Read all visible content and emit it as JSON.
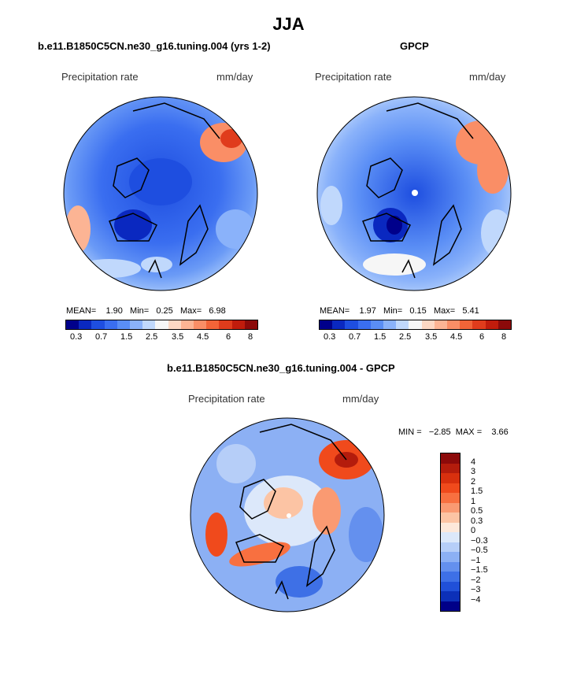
{
  "title": "JJA",
  "panels": [
    {
      "title": "b.e11.B1850C5CN.ne30_g16.tuning.004 (yrs 1-2)",
      "variable": "Precipitation rate",
      "units": "mm/day",
      "stats": {
        "mean_label": "MEAN=",
        "mean": "1.90",
        "min_label": "Min=",
        "min": "0.25",
        "max_label": "Max=",
        "max": "6.98"
      }
    },
    {
      "title": "GPCP",
      "variable": "Precipitation rate",
      "units": "mm/day",
      "stats": {
        "mean_label": "MEAN=",
        "mean": "1.97",
        "min_label": "Min=",
        "min": "0.15",
        "max_label": "Max=",
        "max": "5.41"
      }
    },
    {
      "title": "b.e11.B1850C5CN.ne30_g16.tuning.004 - GPCP",
      "variable": "Precipitation rate",
      "units": "mm/day",
      "stats": {
        "min_label": "MIN =",
        "min": "−2.85",
        "max_label": "MAX =",
        "max": "3.66"
      }
    }
  ],
  "colorbar_abs": {
    "colors": [
      "#00008b",
      "#0a28c0",
      "#1e4ee0",
      "#3a6ef0",
      "#5a8ef5",
      "#8ab2fa",
      "#c0d8fc",
      "#f6f6f6",
      "#fcd8c4",
      "#fcb494",
      "#fa8e66",
      "#f26438",
      "#e03c1c",
      "#c01c0c",
      "#8c0a0a"
    ],
    "labels": [
      "0.3",
      "0.7",
      "1.5",
      "2.5",
      "3.5",
      "4.5",
      "6",
      "8"
    ]
  },
  "colorbar_diff": {
    "colors": [
      "#8c0a0a",
      "#b41c0c",
      "#d8300e",
      "#f04a1c",
      "#f87040",
      "#fa9a72",
      "#fcc4a4",
      "#fde8da",
      "#dce8fa",
      "#b6cef8",
      "#8cb0f4",
      "#6490ee",
      "#3e70e6",
      "#2050d8",
      "#0c30b8",
      "#000088"
    ],
    "labels": [
      "4",
      "3",
      "2",
      "1.5",
      "1",
      "0.5",
      "0.3",
      "0",
      "−0.3",
      "−0.5",
      "−1",
      "−1.5",
      "−2",
      "−3",
      "−4"
    ]
  }
}
